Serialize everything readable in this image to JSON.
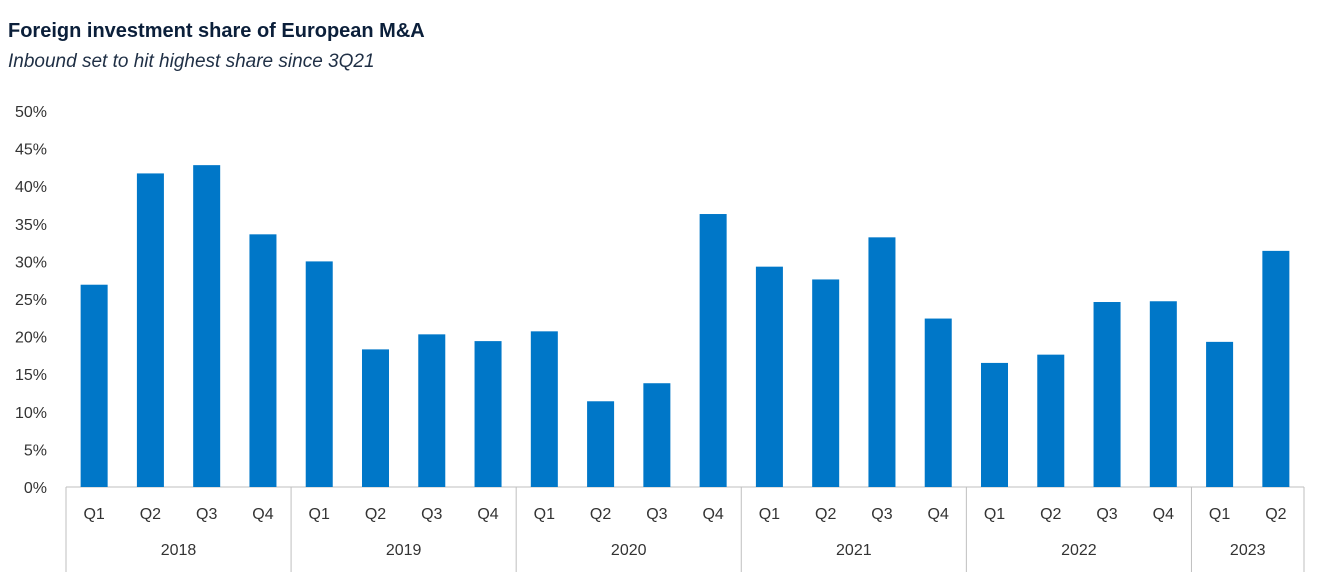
{
  "chart_data": {
    "type": "bar",
    "title": "Foreign investment share of European M&A",
    "subtitle": "Inbound set to hit highest share since 3Q21",
    "y_tick_labels": [
      "0%",
      "5%",
      "10%",
      "15%",
      "20%",
      "25%",
      "30%",
      "35%",
      "40%",
      "45%",
      "50%"
    ],
    "ylim": [
      0,
      50
    ],
    "grid": false,
    "bar_color": "#0077c8",
    "groups": [
      {
        "year": "2018",
        "quarters": [
          "Q1",
          "Q2",
          "Q3",
          "Q4"
        ]
      },
      {
        "year": "2019",
        "quarters": [
          "Q1",
          "Q2",
          "Q3",
          "Q4"
        ]
      },
      {
        "year": "2020",
        "quarters": [
          "Q1",
          "Q2",
          "Q3",
          "Q4"
        ]
      },
      {
        "year": "2021",
        "quarters": [
          "Q1",
          "Q2",
          "Q3",
          "Q4"
        ]
      },
      {
        "year": "2022",
        "quarters": [
          "Q1",
          "Q2",
          "Q3",
          "Q4"
        ]
      },
      {
        "year": "2023",
        "quarters": [
          "Q1",
          "Q2"
        ]
      }
    ],
    "values": [
      26.9,
      41.7,
      42.8,
      33.6,
      30.0,
      18.3,
      20.3,
      19.4,
      20.7,
      11.4,
      13.8,
      36.3,
      29.3,
      27.6,
      33.2,
      22.4,
      16.5,
      17.6,
      24.6,
      24.7,
      19.3,
      31.4
    ]
  }
}
